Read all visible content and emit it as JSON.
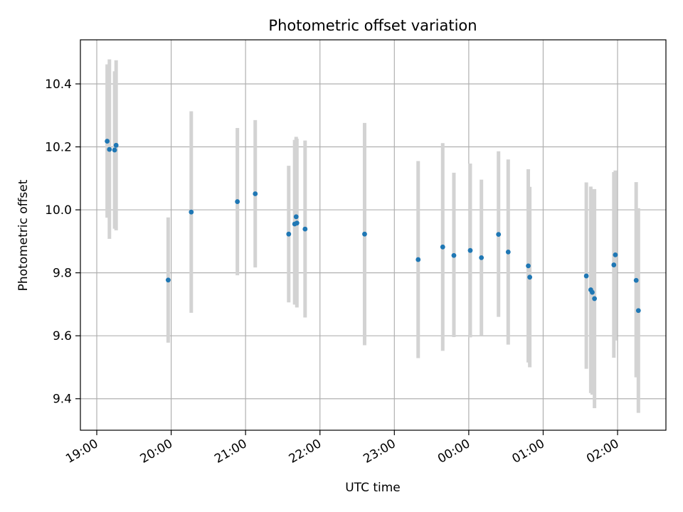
{
  "chart_data": {
    "type": "scatter",
    "title": "Photometric offset variation",
    "xlabel": "UTC time",
    "ylabel": "Photometric offset",
    "x_unit": "hours",
    "xlim": [
      18.78,
      26.65
    ],
    "ylim": [
      9.3,
      10.54
    ],
    "x_ticks": [
      {
        "value": 19,
        "label": "19:00"
      },
      {
        "value": 20,
        "label": "20:00"
      },
      {
        "value": 21,
        "label": "21:00"
      },
      {
        "value": 22,
        "label": "22:00"
      },
      {
        "value": 23,
        "label": "23:00"
      },
      {
        "value": 24,
        "label": "00:00"
      },
      {
        "value": 25,
        "label": "01:00"
      },
      {
        "value": 26,
        "label": "02:00"
      }
    ],
    "y_ticks": [
      {
        "value": 9.4,
        "label": "9.4"
      },
      {
        "value": 9.6,
        "label": "9.6"
      },
      {
        "value": 9.8,
        "label": "9.8"
      },
      {
        "value": 10.0,
        "label": "10.0"
      },
      {
        "value": 10.2,
        "label": "10.2"
      },
      {
        "value": 10.4,
        "label": "10.4"
      }
    ],
    "grid": true,
    "legend": "none",
    "colors": {
      "points": "#1f77b4",
      "errorbars": "#d3d3d3",
      "grid": "#b0b0b0"
    },
    "points": [
      {
        "x": 19.14,
        "y": 10.218,
        "low": 9.975,
        "high": 10.462
      },
      {
        "x": 19.17,
        "y": 10.192,
        "low": 9.908,
        "high": 10.478
      },
      {
        "x": 19.24,
        "y": 10.19,
        "low": 9.94,
        "high": 10.44
      },
      {
        "x": 19.26,
        "y": 10.205,
        "low": 9.935,
        "high": 10.475
      },
      {
        "x": 19.96,
        "y": 9.777,
        "low": 9.578,
        "high": 9.976
      },
      {
        "x": 20.27,
        "y": 9.993,
        "low": 9.673,
        "high": 10.313
      },
      {
        "x": 20.89,
        "y": 10.026,
        "low": 9.792,
        "high": 10.26
      },
      {
        "x": 21.13,
        "y": 10.051,
        "low": 9.817,
        "high": 10.285
      },
      {
        "x": 21.58,
        "y": 9.923,
        "low": 9.706,
        "high": 10.14
      },
      {
        "x": 21.66,
        "y": 9.955,
        "low": 9.699,
        "high": 10.222
      },
      {
        "x": 21.68,
        "y": 9.978,
        "low": 9.724,
        "high": 10.232
      },
      {
        "x": 21.69,
        "y": 9.958,
        "low": 9.69,
        "high": 10.226
      },
      {
        "x": 21.8,
        "y": 9.939,
        "low": 9.658,
        "high": 10.22
      },
      {
        "x": 22.6,
        "y": 9.923,
        "low": 9.57,
        "high": 10.276
      },
      {
        "x": 23.32,
        "y": 9.842,
        "low": 9.529,
        "high": 10.155
      },
      {
        "x": 23.65,
        "y": 9.882,
        "low": 9.552,
        "high": 10.212
      },
      {
        "x": 23.8,
        "y": 9.855,
        "low": 9.596,
        "high": 10.118
      },
      {
        "x": 24.02,
        "y": 9.871,
        "low": 9.595,
        "high": 10.147
      },
      {
        "x": 24.17,
        "y": 9.848,
        "low": 9.6,
        "high": 10.096
      },
      {
        "x": 24.4,
        "y": 9.922,
        "low": 9.66,
        "high": 10.186
      },
      {
        "x": 24.53,
        "y": 9.866,
        "low": 9.572,
        "high": 10.16
      },
      {
        "x": 24.8,
        "y": 9.822,
        "low": 9.515,
        "high": 10.129
      },
      {
        "x": 24.82,
        "y": 9.786,
        "low": 9.5,
        "high": 10.073
      },
      {
        "x": 25.58,
        "y": 9.79,
        "low": 9.495,
        "high": 10.087
      },
      {
        "x": 25.64,
        "y": 9.746,
        "low": 9.418,
        "high": 10.074
      },
      {
        "x": 25.66,
        "y": 9.738,
        "low": 9.413,
        "high": 10.065
      },
      {
        "x": 25.69,
        "y": 9.718,
        "low": 9.37,
        "high": 10.066
      },
      {
        "x": 25.95,
        "y": 9.825,
        "low": 9.53,
        "high": 10.12
      },
      {
        "x": 25.97,
        "y": 9.857,
        "low": 9.585,
        "high": 10.125
      },
      {
        "x": 26.25,
        "y": 9.776,
        "low": 9.468,
        "high": 10.088
      },
      {
        "x": 26.28,
        "y": 9.68,
        "low": 9.355,
        "high": 10.005
      }
    ]
  }
}
